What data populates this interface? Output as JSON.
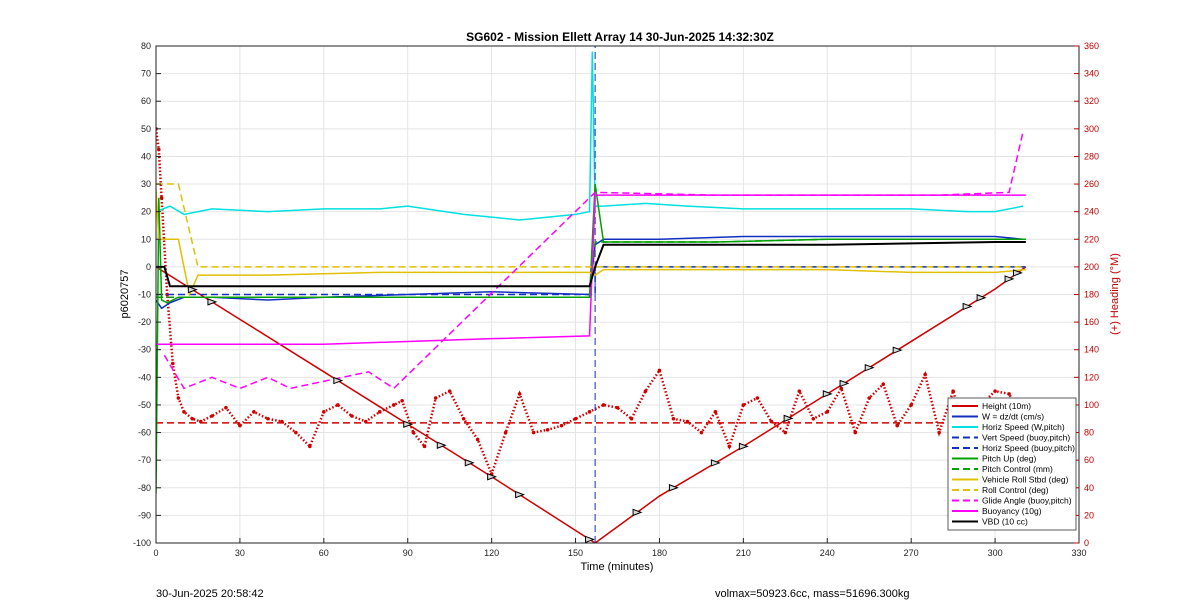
{
  "chart_data": {
    "type": "line",
    "title": "SG602 - Mission Ellett Array 14 30-Jun-2025 14:32:30Z",
    "xlabel": "Time (minutes)",
    "ylabel_left": "p6020757",
    "ylabel_right": "(+) Heading (°M)",
    "xlim": [
      0,
      330
    ],
    "ylim_left": [
      -100,
      80
    ],
    "ylim_right": [
      0,
      360
    ],
    "x_ticks": [
      0,
      30,
      60,
      90,
      120,
      150,
      180,
      210,
      240,
      270,
      300,
      330
    ],
    "y_ticks_left": [
      80,
      70,
      60,
      50,
      40,
      30,
      20,
      10,
      0,
      -10,
      -20,
      -30,
      -40,
      -50,
      -60,
      -70,
      -80,
      -90,
      -100
    ],
    "y_ticks_right": [
      360,
      340,
      320,
      300,
      280,
      260,
      240,
      220,
      200,
      180,
      160,
      140,
      120,
      100,
      80,
      60,
      40,
      20,
      0
    ],
    "grid": true,
    "legend_position": "bottom-right",
    "series": [
      {
        "name": "Height (10m)",
        "color": "#d00000",
        "style": "solid",
        "width": 1.5,
        "x": [
          0,
          30,
          60,
          90,
          120,
          157,
          180,
          210,
          240,
          270,
          300,
          311
        ],
        "y": [
          0,
          -19,
          -38,
          -57,
          -76,
          -100,
          -83,
          -65,
          -46,
          -27,
          -8,
          0
        ]
      },
      {
        "name": "W = dz/dt (cm/s)",
        "color": "#1030c0",
        "style": "solid",
        "width": 1.5,
        "x": [
          0,
          2,
          5,
          10,
          20,
          40,
          60,
          90,
          120,
          155,
          157,
          160,
          180,
          210,
          240,
          270,
          300,
          310
        ],
        "y": [
          -12,
          -15,
          -13,
          -11,
          -11,
          -12,
          -11,
          -10,
          -9,
          -10,
          8,
          10,
          10,
          11,
          11,
          11,
          11,
          10
        ]
      },
      {
        "name": "Horiz Speed (W,pitch)",
        "color": "#00e0e0",
        "style": "solid",
        "width": 1.5,
        "x": [
          0,
          5,
          10,
          20,
          40,
          60,
          80,
          90,
          110,
          130,
          150,
          155,
          156,
          157,
          160,
          175,
          190,
          210,
          240,
          270,
          290,
          300,
          310
        ],
        "y": [
          20,
          22,
          19,
          21,
          20,
          21,
          21,
          22,
          19,
          17,
          19,
          20,
          78,
          22,
          22,
          23,
          22,
          21,
          21,
          21,
          20,
          20,
          22
        ]
      },
      {
        "name": "Vert Speed (buoy,pitch)",
        "color": "#1030c0",
        "style": "dashed",
        "width": 1.5,
        "x": [
          0,
          157,
          157,
          311
        ],
        "y": [
          -10,
          -10,
          0,
          0
        ]
      },
      {
        "name": "Horiz Speed (buoy,pitch)",
        "color": "#1030c0",
        "style": "dashed",
        "width": 1,
        "x": [
          157,
          157
        ],
        "y": [
          -100,
          80
        ]
      },
      {
        "name": "Pitch Up (deg)",
        "color": "#00a000",
        "style": "solid",
        "width": 1.5,
        "x": [
          0,
          1,
          2,
          4,
          8,
          20,
          60,
          90,
          120,
          155,
          157,
          160,
          200,
          240,
          280,
          311
        ],
        "y": [
          -82,
          25,
          -12,
          -13,
          -11,
          -11,
          -11,
          -11,
          -11,
          -11,
          30,
          9,
          9,
          10,
          10,
          10
        ]
      },
      {
        "name": "Pitch Control (mm)",
        "color": "#00a000",
        "style": "dashed",
        "width": 1.5,
        "x": [
          0,
          20,
          60,
          90,
          120,
          155,
          157,
          200,
          240,
          280,
          311
        ],
        "y": [
          -11,
          -11,
          -11,
          -11,
          -11,
          -11,
          9,
          9,
          10,
          10,
          10
        ]
      },
      {
        "name": "Vehicle Roll Stbd (deg)",
        "color": "#e0c000",
        "style": "solid",
        "width": 1.5,
        "x": [
          0,
          1,
          2,
          8,
          12,
          15,
          40,
          80,
          120,
          155,
          157,
          160,
          200,
          240,
          270,
          300,
          311
        ],
        "y": [
          28,
          10,
          10,
          10,
          -10,
          -3,
          -3,
          -2,
          -2,
          -2,
          -3,
          -1,
          -1,
          -1,
          -2,
          -2,
          -1
        ]
      },
      {
        "name": "Roll Control (deg)",
        "color": "#e0c000",
        "style": "dashed",
        "width": 1.5,
        "x": [
          0,
          2,
          8,
          15,
          40,
          80,
          120,
          155,
          157,
          200,
          240,
          280,
          311
        ],
        "y": [
          30,
          30,
          30,
          0,
          0,
          0,
          0,
          0,
          0,
          0,
          0,
          0,
          0
        ]
      },
      {
        "name": "Glide Angle (buoy,pitch)",
        "color": "#ff00ff",
        "style": "dashed",
        "width": 1.5,
        "x": [
          3,
          10,
          20,
          30,
          40,
          48,
          76,
          85,
          157,
          200,
          240,
          280,
          305,
          310
        ],
        "y": [
          -32,
          -44,
          -40,
          -44,
          -40,
          -44,
          -38,
          -44,
          27,
          26,
          26,
          26,
          27,
          49
        ]
      },
      {
        "name": "Buoyancy (10g)",
        "color": "#ff00ff",
        "style": "solid",
        "width": 1.5,
        "x": [
          0,
          5,
          30,
          60,
          90,
          120,
          155,
          157,
          200,
          240,
          280,
          311
        ],
        "y": [
          -28,
          -28,
          -28,
          -28,
          -27,
          -26,
          -25,
          26,
          26,
          26,
          26,
          26
        ]
      },
      {
        "name": "VBD (10 cc)",
        "color": "#000000",
        "style": "solid",
        "width": 2,
        "x": [
          0,
          3,
          5,
          10,
          155,
          157,
          160,
          180,
          240,
          300,
          311
        ],
        "y": [
          0,
          0,
          -7,
          -7,
          -7,
          0,
          8,
          8,
          8,
          9,
          9
        ]
      }
    ],
    "heading": {
      "name": "(+) Heading (°M)",
      "color": "#d00000",
      "reference_heading": 87,
      "x": [
        0,
        1,
        2,
        4,
        6,
        8,
        10,
        13,
        16,
        20,
        25,
        30,
        35,
        40,
        45,
        50,
        55,
        60,
        65,
        70,
        75,
        80,
        85,
        88,
        92,
        96,
        100,
        105,
        110,
        115,
        120,
        125,
        130,
        135,
        140,
        145,
        150,
        155,
        160,
        165,
        170,
        175,
        180,
        185,
        190,
        195,
        200,
        205,
        210,
        215,
        220,
        225,
        230,
        235,
        240,
        245,
        250,
        255,
        260,
        265,
        270,
        275,
        280,
        285,
        290,
        295,
        300,
        305,
        310
      ],
      "y": [
        300,
        285,
        250,
        180,
        130,
        105,
        95,
        90,
        88,
        92,
        98,
        85,
        95,
        90,
        88,
        80,
        70,
        95,
        100,
        92,
        88,
        95,
        100,
        103,
        80,
        70,
        105,
        110,
        90,
        75,
        50,
        80,
        108,
        80,
        82,
        85,
        90,
        95,
        100,
        98,
        90,
        110,
        125,
        90,
        88,
        80,
        95,
        70,
        100,
        105,
        88,
        80,
        110,
        90,
        95,
        112,
        80,
        105,
        115,
        85,
        100,
        122,
        80,
        110,
        75,
        100,
        110,
        108,
        90
      ]
    },
    "markers": {
      "description": "Triangle markers along Height trace",
      "x": [
        13,
        20,
        65,
        90,
        102,
        112,
        120,
        130,
        155,
        172,
        185,
        200,
        210,
        226,
        240,
        246,
        255,
        265,
        290,
        295,
        305,
        308
      ]
    }
  },
  "footer": {
    "timestamp": "30-Jun-2025 20:58:42",
    "stats": "volmax=50923.6cc, mass=51696.300kg"
  }
}
